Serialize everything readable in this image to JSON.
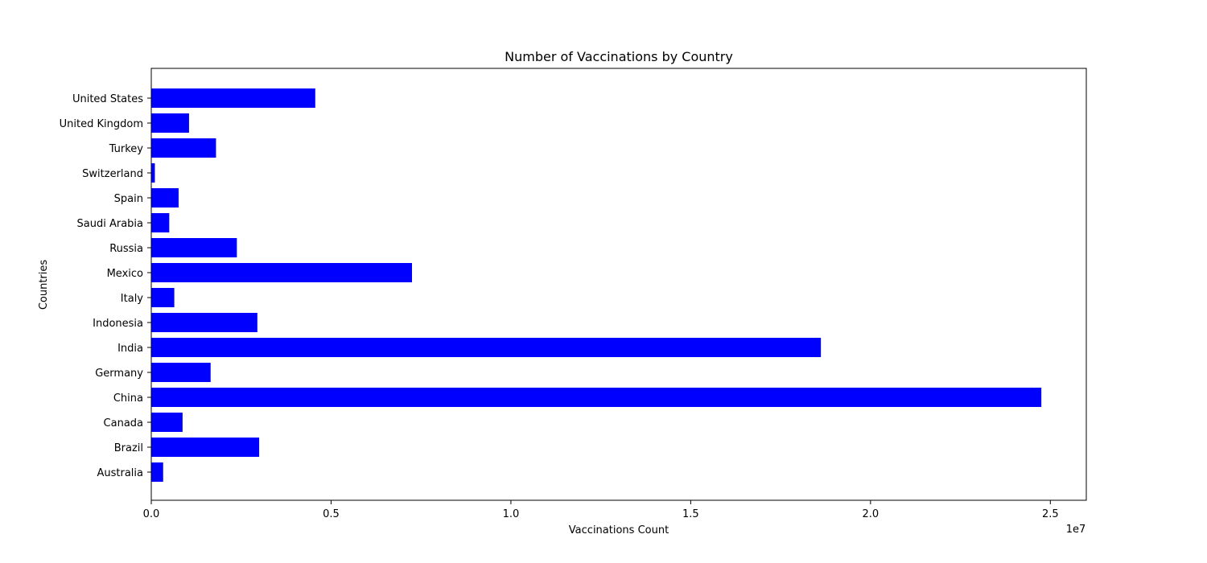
{
  "chart_data": {
    "type": "bar",
    "orientation": "horizontal",
    "title": "Number of Vaccinations by Country",
    "xlabel": "Vaccinations Count",
    "ylabel": "Countries",
    "x_offset_label": "1e7",
    "x_scale_factor": 10000000,
    "xlim": [
      0,
      26000000
    ],
    "x_ticks": [
      0,
      5000000,
      10000000,
      15000000,
      20000000,
      25000000
    ],
    "x_tick_labels": [
      "0.0",
      "0.5",
      "1.0",
      "1.5",
      "2.0",
      "2.5"
    ],
    "bar_color": "#0000ff",
    "grid": false,
    "legend": "none",
    "categories": [
      "Australia",
      "Brazil",
      "Canada",
      "China",
      "Germany",
      "India",
      "Indonesia",
      "Italy",
      "Mexico",
      "Russia",
      "Saudi Arabia",
      "Spain",
      "Switzerland",
      "Turkey",
      "United Kingdom",
      "United States"
    ],
    "values": [
      330000,
      3000000,
      870000,
      24750000,
      1650000,
      18620000,
      2950000,
      640000,
      7250000,
      2380000,
      500000,
      760000,
      100000,
      1800000,
      1050000,
      4560000
    ]
  }
}
